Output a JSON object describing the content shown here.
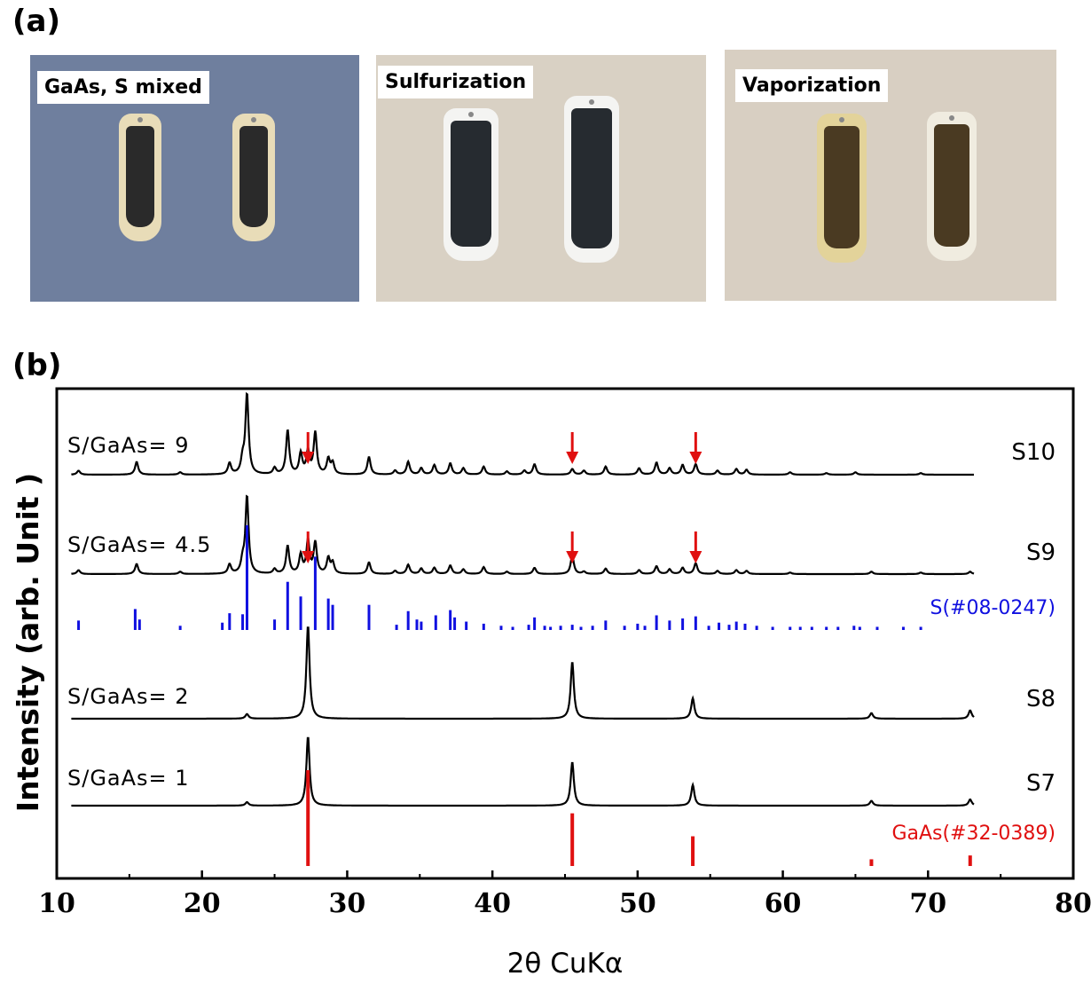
{
  "panel_a": {
    "label": "(a)",
    "photos": [
      {
        "caption": "GaAs, S mixed",
        "background": "#6f7f9e",
        "boat": "#e8dcb8",
        "content": "#2a2a2a"
      },
      {
        "caption": "Sulfurization",
        "background": "#d9d1c4",
        "boat": "#f4f4f2",
        "content": "#262b30"
      },
      {
        "caption": "Vaporization",
        "background": "#d8cfc2",
        "boat": "#e3d39a",
        "content": "#4a3a22"
      }
    ]
  },
  "chart_data": {
    "panel_label": "(b)",
    "type": "line",
    "xlabel": "2θ CuKα",
    "ylabel": "Intensity (arb. Unit )",
    "xlim": [
      10,
      80
    ],
    "xticks": [
      10,
      20,
      30,
      40,
      50,
      60,
      70,
      80
    ],
    "yticks_shown": false,
    "grid": false,
    "colors": {
      "trace": "#000000",
      "sulfur_ref": "#1010e0",
      "gaas_ref": "#e01010",
      "arrow": "#e01010"
    },
    "series": [
      {
        "sample": "S10",
        "ratio_label": "S/GaAs= 9",
        "peaks": [
          [
            11.5,
            0.05
          ],
          [
            15.5,
            0.16
          ],
          [
            18.5,
            0.03
          ],
          [
            21.9,
            0.14
          ],
          [
            22.8,
            0.17
          ],
          [
            23.1,
            1.0
          ],
          [
            25.0,
            0.08
          ],
          [
            25.9,
            0.55
          ],
          [
            26.8,
            0.26
          ],
          [
            27.3,
            0.28
          ],
          [
            27.8,
            0.52
          ],
          [
            28.7,
            0.19
          ],
          [
            29.0,
            0.14
          ],
          [
            31.5,
            0.22
          ],
          [
            33.3,
            0.05
          ],
          [
            34.2,
            0.16
          ],
          [
            35.1,
            0.08
          ],
          [
            36.0,
            0.12
          ],
          [
            37.1,
            0.14
          ],
          [
            38.0,
            0.08
          ],
          [
            39.4,
            0.1
          ],
          [
            41.0,
            0.04
          ],
          [
            42.2,
            0.05
          ],
          [
            42.9,
            0.13
          ],
          [
            45.5,
            0.07
          ],
          [
            46.3,
            0.05
          ],
          [
            47.8,
            0.1
          ],
          [
            50.1,
            0.08
          ],
          [
            51.3,
            0.15
          ],
          [
            52.2,
            0.08
          ],
          [
            53.1,
            0.12
          ],
          [
            54.0,
            0.13
          ],
          [
            55.5,
            0.05
          ],
          [
            56.8,
            0.07
          ],
          [
            57.5,
            0.06
          ],
          [
            60.5,
            0.03
          ],
          [
            63.0,
            0.02
          ],
          [
            65.0,
            0.03
          ],
          [
            69.5,
            0.02
          ]
        ],
        "arrows_at": [
          27.3,
          45.5,
          54.0
        ]
      },
      {
        "sample": "S9",
        "ratio_label": "S/GaAs= 4.5",
        "peaks": [
          [
            11.5,
            0.05
          ],
          [
            15.5,
            0.13
          ],
          [
            18.5,
            0.03
          ],
          [
            21.9,
            0.12
          ],
          [
            22.8,
            0.15
          ],
          [
            23.1,
            1.0
          ],
          [
            25.0,
            0.06
          ],
          [
            25.9,
            0.36
          ],
          [
            26.8,
            0.24
          ],
          [
            27.3,
            0.42
          ],
          [
            27.8,
            0.4
          ],
          [
            28.7,
            0.2
          ],
          [
            29.0,
            0.14
          ],
          [
            31.5,
            0.15
          ],
          [
            33.3,
            0.04
          ],
          [
            34.2,
            0.12
          ],
          [
            35.1,
            0.07
          ],
          [
            36.0,
            0.08
          ],
          [
            37.1,
            0.11
          ],
          [
            38.0,
            0.06
          ],
          [
            39.4,
            0.09
          ],
          [
            41.0,
            0.03
          ],
          [
            42.9,
            0.08
          ],
          [
            45.5,
            0.24
          ],
          [
            46.3,
            0.03
          ],
          [
            47.8,
            0.07
          ],
          [
            50.1,
            0.05
          ],
          [
            51.3,
            0.1
          ],
          [
            52.2,
            0.06
          ],
          [
            53.1,
            0.08
          ],
          [
            54.0,
            0.14
          ],
          [
            55.5,
            0.04
          ],
          [
            56.8,
            0.05
          ],
          [
            57.5,
            0.04
          ],
          [
            60.5,
            0.02
          ],
          [
            66.1,
            0.03
          ],
          [
            69.5,
            0.02
          ],
          [
            72.9,
            0.03
          ]
        ],
        "arrows_at": [
          27.3,
          45.5,
          54.0
        ]
      },
      {
        "sample": "S8",
        "ratio_label": "S/GaAs= 2",
        "peaks": [
          [
            23.1,
            0.05
          ],
          [
            27.3,
            1.0
          ],
          [
            45.5,
            0.61
          ],
          [
            53.8,
            0.22
          ],
          [
            66.1,
            0.06
          ],
          [
            72.9,
            0.09
          ]
        ],
        "arrows_at": []
      },
      {
        "sample": "S7",
        "ratio_label": "S/GaAs= 1",
        "peaks": [
          [
            23.1,
            0.05
          ],
          [
            27.3,
            1.0
          ],
          [
            45.5,
            0.63
          ],
          [
            53.8,
            0.3
          ],
          [
            66.1,
            0.07
          ],
          [
            72.9,
            0.09
          ]
        ],
        "arrows_at": []
      }
    ],
    "references": [
      {
        "name": "S(#08-0247)",
        "lines": [
          [
            11.5,
            0.09
          ],
          [
            15.4,
            0.2
          ],
          [
            15.7,
            0.1
          ],
          [
            18.5,
            0.04
          ],
          [
            21.4,
            0.07
          ],
          [
            21.9,
            0.16
          ],
          [
            22.8,
            0.15
          ],
          [
            23.1,
            1.0
          ],
          [
            25.0,
            0.1
          ],
          [
            25.9,
            0.46
          ],
          [
            26.8,
            0.32
          ],
          [
            27.8,
            0.7
          ],
          [
            28.7,
            0.3
          ],
          [
            29.0,
            0.24
          ],
          [
            31.5,
            0.24
          ],
          [
            33.4,
            0.05
          ],
          [
            34.2,
            0.18
          ],
          [
            34.8,
            0.1
          ],
          [
            35.1,
            0.08
          ],
          [
            36.1,
            0.14
          ],
          [
            37.1,
            0.19
          ],
          [
            37.4,
            0.12
          ],
          [
            38.2,
            0.08
          ],
          [
            39.4,
            0.06
          ],
          [
            40.6,
            0.04
          ],
          [
            41.4,
            0.03
          ],
          [
            42.5,
            0.05
          ],
          [
            42.9,
            0.12
          ],
          [
            43.6,
            0.04
          ],
          [
            44.0,
            0.03
          ],
          [
            44.7,
            0.04
          ],
          [
            45.5,
            0.05
          ],
          [
            46.1,
            0.03
          ],
          [
            46.9,
            0.04
          ],
          [
            47.8,
            0.09
          ],
          [
            49.1,
            0.04
          ],
          [
            50.0,
            0.06
          ],
          [
            50.5,
            0.04
          ],
          [
            51.3,
            0.14
          ],
          [
            52.2,
            0.09
          ],
          [
            53.1,
            0.11
          ],
          [
            54.0,
            0.13
          ],
          [
            54.9,
            0.04
          ],
          [
            55.6,
            0.07
          ],
          [
            56.3,
            0.05
          ],
          [
            56.8,
            0.08
          ],
          [
            57.4,
            0.06
          ],
          [
            58.2,
            0.04
          ],
          [
            59.3,
            0.03
          ],
          [
            60.5,
            0.03
          ],
          [
            61.2,
            0.03
          ],
          [
            62.0,
            0.03
          ],
          [
            63.0,
            0.03
          ],
          [
            63.8,
            0.03
          ],
          [
            64.9,
            0.04
          ],
          [
            65.3,
            0.03
          ],
          [
            66.5,
            0.03
          ],
          [
            68.3,
            0.03
          ],
          [
            69.5,
            0.03
          ]
        ]
      },
      {
        "name": "GaAs(#32-0389)",
        "lines": [
          [
            27.3,
            1.0
          ],
          [
            45.5,
            0.55
          ],
          [
            53.8,
            0.31
          ],
          [
            66.1,
            0.07
          ],
          [
            72.9,
            0.11
          ]
        ]
      }
    ]
  }
}
